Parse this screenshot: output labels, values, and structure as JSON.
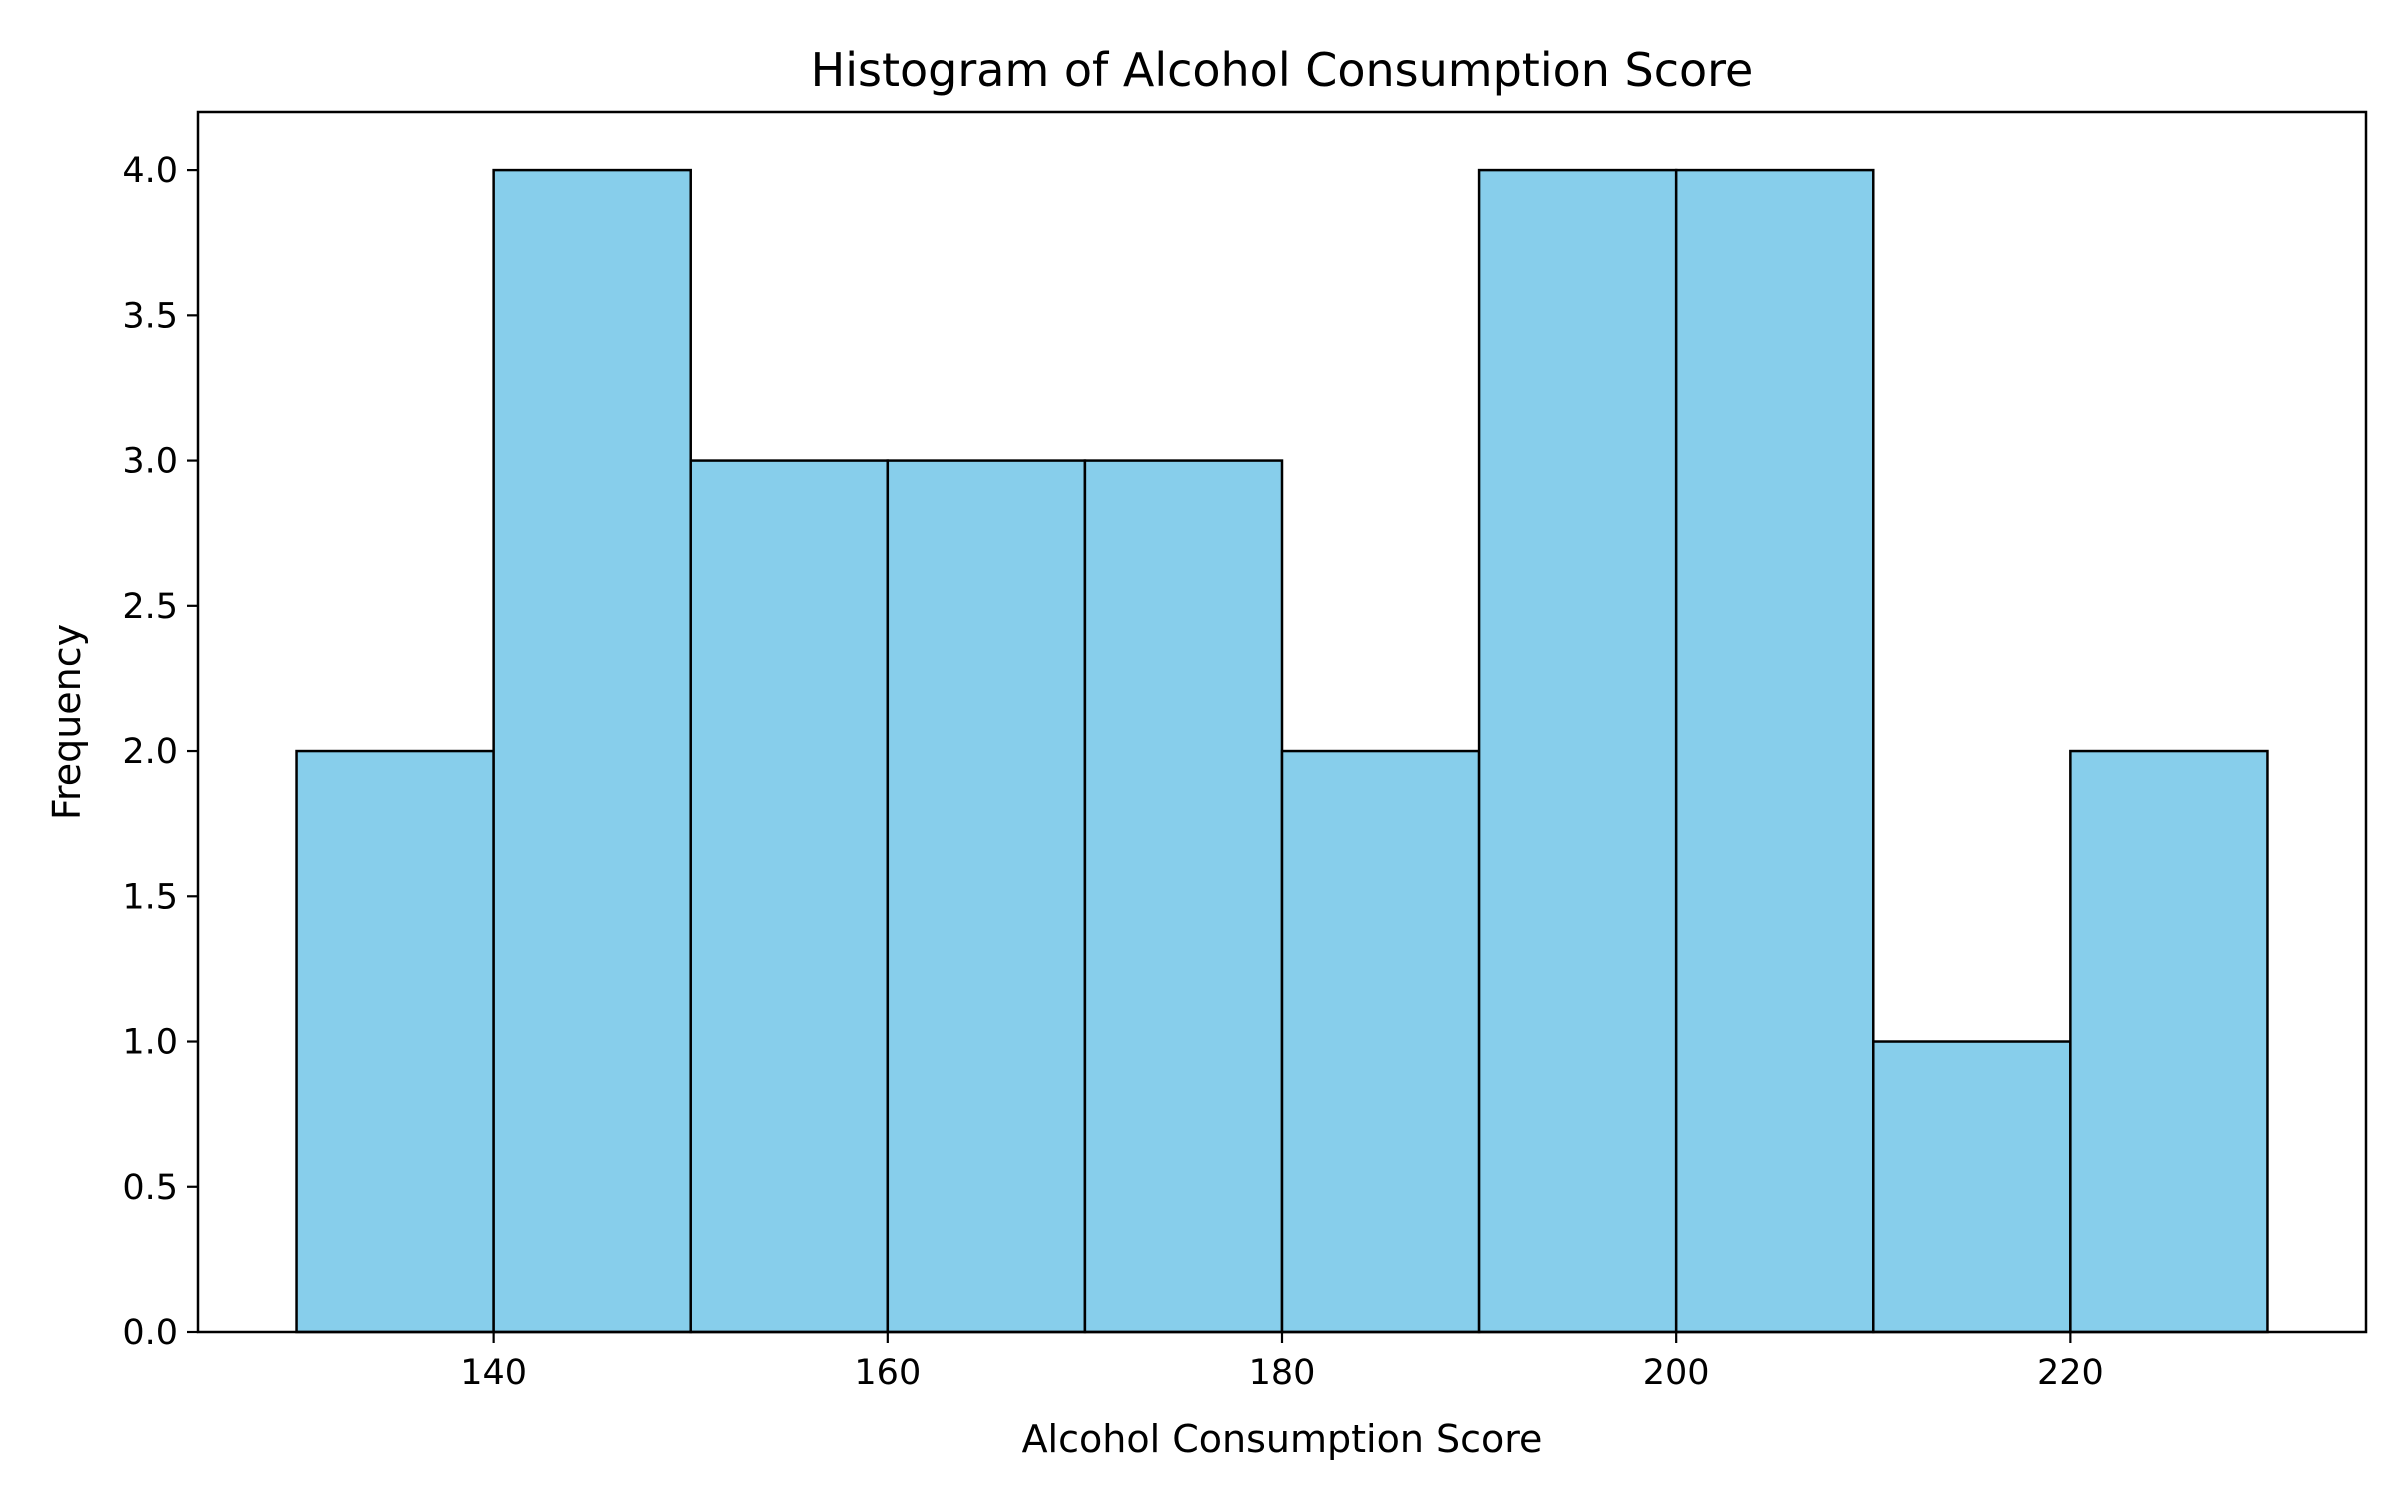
{
  "chart_data": {
    "type": "bar",
    "title": "Histogram of Alcohol Consumption Score",
    "xlabel": "Alcohol Consumption Score",
    "ylabel": "Frequency",
    "bin_edges": [
      130,
      140,
      150,
      160,
      170,
      180,
      190,
      200,
      210,
      220,
      230
    ],
    "values": [
      2,
      4,
      3,
      3,
      3,
      2,
      4,
      4,
      1,
      2
    ],
    "xlim": [
      125,
      235
    ],
    "ylim": [
      0,
      4.2
    ],
    "xticks": [
      "140",
      "160",
      "180",
      "200",
      "220"
    ],
    "yticks": [
      "0.0",
      "0.5",
      "1.0",
      "1.5",
      "2.0",
      "2.5",
      "3.0",
      "3.5",
      "4.0"
    ],
    "grid": false,
    "bar_color": "#87ceeb",
    "edge_color": "#000000"
  }
}
